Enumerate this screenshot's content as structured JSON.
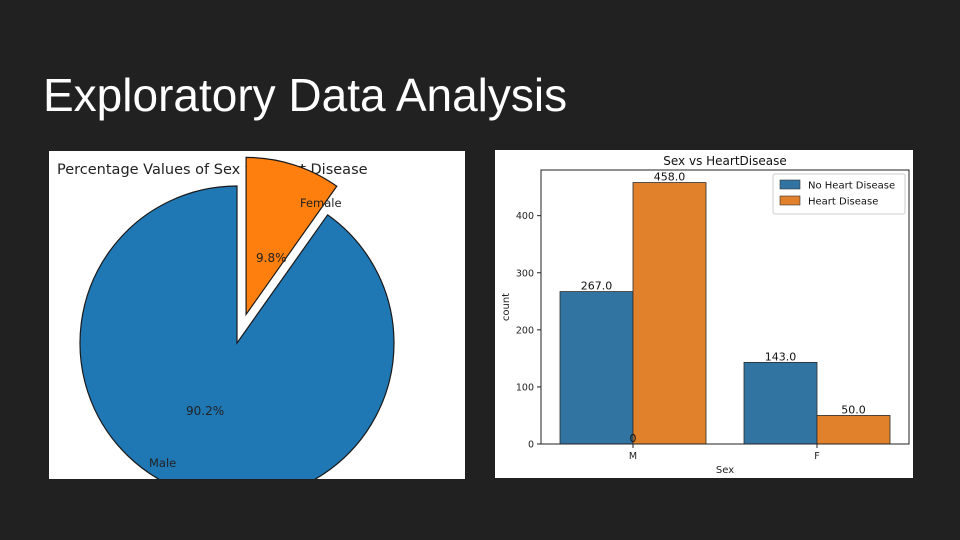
{
  "slide": {
    "title": "Exploratory Data Analysis"
  },
  "chart_data": [
    {
      "type": "pie",
      "title": "Percentage Values of Sex vs Heart Disease",
      "labels": [
        "Male",
        "Female"
      ],
      "values": [
        90.2,
        9.8
      ],
      "value_labels": [
        "90.2%",
        "9.8%"
      ],
      "exploded": [
        "Female"
      ],
      "colors": [
        "#1f77b4",
        "#ff7f0e"
      ]
    },
    {
      "type": "bar",
      "title": "Sex vs HeartDisease",
      "xlabel": "Sex",
      "ylabel": "count",
      "categories": [
        "M",
        "F"
      ],
      "series": [
        {
          "name": "No Heart Disease",
          "values": [
            267,
            143
          ],
          "labels": [
            "267.0",
            "143.0"
          ],
          "color": "#3274a1"
        },
        {
          "name": "Heart Disease",
          "values": [
            458,
            50
          ],
          "labels": [
            "458.0",
            "50.0"
          ],
          "color": "#e1812c"
        }
      ],
      "ylim": [
        0,
        480
      ],
      "yticks": [
        0,
        100,
        200,
        300,
        400
      ],
      "ytick_labels": [
        "0",
        "100",
        "200",
        "300",
        "400"
      ],
      "stray_label": "0",
      "legend": "top-right",
      "grid": false
    }
  ]
}
